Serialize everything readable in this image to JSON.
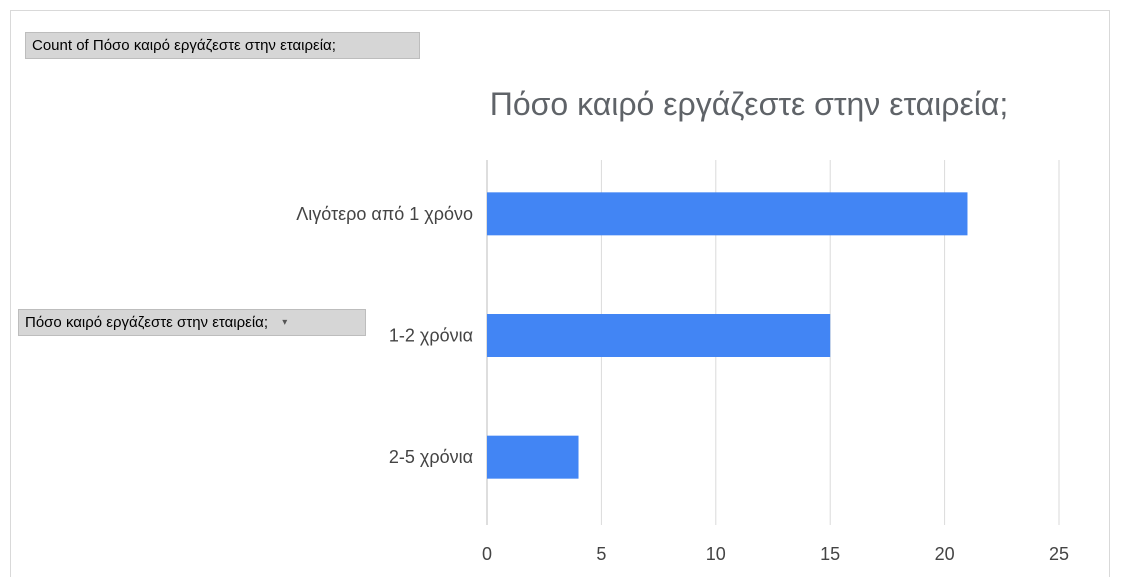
{
  "pivot": {
    "value_field_label": "Count of Πόσο καιρό εργάζεστε στην εταιρεία;",
    "axis_field_label": "Πόσο καιρό εργάζεστε στην εταιρεία;",
    "dropdown_icon": "▾"
  },
  "chart_data": {
    "type": "bar",
    "orientation": "horizontal",
    "title": "Πόσο καιρό εργάζεστε στην εταιρεία;",
    "categories": [
      "Λιγότερο από 1 χρόνο",
      "1-2 χρόνια",
      "2-5 χρόνια"
    ],
    "values": [
      21,
      15,
      4
    ],
    "xlim": [
      0,
      25
    ],
    "xticks": [
      0,
      5,
      10,
      15,
      20,
      25
    ],
    "xlabel": "",
    "ylabel": "",
    "grid": true,
    "legend": "none",
    "bar_color": "#4285f4",
    "grid_color": "#dadada"
  }
}
